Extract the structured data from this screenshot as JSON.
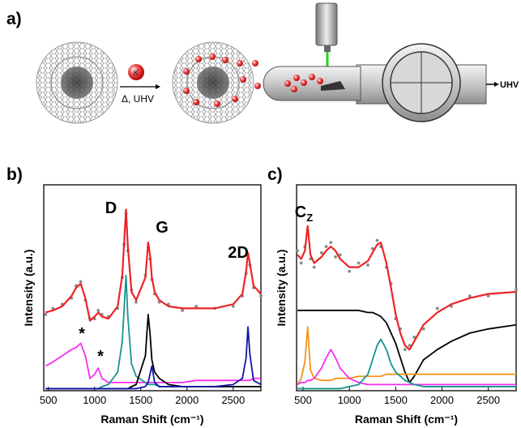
{
  "panel_a": {
    "label": "a)",
    "ion": "K",
    "condition": "Δ, UHV",
    "pump": "UHV"
  },
  "chart_data": [
    {
      "type": "line",
      "label": "b)",
      "x_label": "Raman Shift (cm⁻¹)",
      "y_label": "Intensity (a.u.)",
      "xlim": [
        450,
        2800
      ],
      "ylim": [
        0,
        100
      ],
      "xticks": [
        500,
        1000,
        1500,
        2000,
        2500
      ],
      "annotations": [
        {
          "text": "D"
        },
        {
          "text": "G"
        },
        {
          "text": "2D"
        },
        {
          "text": "*"
        },
        {
          "text": "*"
        }
      ],
      "x": [
        470,
        550,
        650,
        750,
        800,
        850,
        900,
        950,
        1000,
        1040,
        1080,
        1150,
        1250,
        1300,
        1320,
        1340,
        1360,
        1400,
        1450,
        1550,
        1580,
        1600,
        1620,
        1650,
        1700,
        1800,
        1950,
        2100,
        2300,
        2500,
        2600,
        2640,
        2660,
        2680,
        2720,
        2800
      ],
      "series": [
        {
          "color": "#8a8a8a",
          "marker": "dots",
          "values": [
            37,
            40,
            42,
            45,
            51,
            53,
            44,
            35,
            35,
            39,
            37,
            36,
            40,
            55,
            71,
            86,
            68,
            49,
            43,
            56,
            70,
            64,
            54,
            47,
            43,
            42,
            39,
            41,
            40,
            41,
            46,
            57,
            66,
            61,
            50,
            46
          ]
        },
        {
          "color": "#ec2327",
          "marker": "line",
          "values": [
            38,
            39,
            41,
            46,
            50,
            52,
            45,
            34,
            36,
            38,
            36,
            35,
            41,
            56,
            72,
            88,
            70,
            48,
            44,
            55,
            72,
            66,
            55,
            48,
            44,
            41,
            40,
            40,
            40,
            42,
            47,
            58,
            67,
            62,
            51,
            47
          ]
        },
        {
          "color": "#f62cf2",
          "marker": "line",
          "values": [
            12,
            14,
            17,
            20,
            21,
            23,
            17,
            6,
            8,
            11,
            6,
            4,
            4,
            4,
            4,
            4,
            4,
            4,
            4,
            4,
            4,
            4,
            4,
            4,
            4,
            4,
            4,
            5,
            5,
            5,
            5,
            5,
            5,
            5,
            6,
            6
          ]
        },
        {
          "color": "#15948e",
          "marker": "line",
          "values": [
            1,
            1,
            1,
            1,
            1,
            1,
            1,
            1,
            1,
            1,
            2,
            3,
            9,
            24,
            40,
            56,
            36,
            13,
            7,
            4,
            3,
            3,
            3,
            3,
            2,
            2,
            2,
            2,
            2,
            2,
            2,
            2,
            2,
            2,
            2,
            2
          ]
        },
        {
          "color": "#000000",
          "marker": "line",
          "values": [
            1,
            1,
            1,
            1,
            1,
            1,
            1,
            1,
            1,
            1,
            1,
            1,
            1,
            1,
            1,
            1,
            1,
            2,
            3,
            17,
            37,
            28,
            15,
            9,
            6,
            3,
            2,
            2,
            2,
            2,
            2,
            2,
            2,
            2,
            2,
            2
          ]
        },
        {
          "color": "#1414a8",
          "marker": "line",
          "values": [
            1,
            1,
            1,
            1,
            1,
            1,
            1,
            1,
            1,
            1,
            1,
            1,
            1,
            1,
            1,
            1,
            1,
            1,
            1,
            2,
            4,
            8,
            12,
            4,
            2,
            2,
            2,
            2,
            2,
            3,
            6,
            16,
            31,
            18,
            5,
            3
          ]
        }
      ]
    },
    {
      "type": "line",
      "label": "c)",
      "x_label": "Raman Shift (cm⁻¹)",
      "y_label": "Intensity (a.u.)",
      "xlim": [
        430,
        2800
      ],
      "ylim": [
        0,
        100
      ],
      "xticks": [
        500,
        1000,
        1500,
        2000,
        2500
      ],
      "annotations": [
        {
          "text": "C",
          "sub": "Z"
        }
      ],
      "x": [
        440,
        480,
        520,
        550,
        580,
        620,
        700,
        750,
        800,
        850,
        900,
        1000,
        1100,
        1200,
        1250,
        1300,
        1340,
        1400,
        1450,
        1500,
        1550,
        1600,
        1650,
        1700,
        1800,
        1950,
        2100,
        2300,
        2500,
        2800
      ],
      "series": [
        {
          "color": "#8a8a8a",
          "marker": "dots",
          "values": [
            68,
            62,
            70,
            78,
            64,
            60,
            67,
            70,
            72,
            65,
            66,
            58,
            62,
            61,
            69,
            73,
            70,
            60,
            52,
            35,
            30,
            20,
            22,
            26,
            30,
            40,
            41,
            46,
            46,
            49
          ]
        },
        {
          "color": "#ec2327",
          "marker": "line",
          "values": [
            66,
            64,
            68,
            80,
            66,
            62,
            65,
            68,
            70,
            68,
            64,
            60,
            60,
            63,
            67,
            71,
            72,
            62,
            50,
            37,
            28,
            22,
            20,
            24,
            32,
            38,
            42,
            45,
            47,
            48
          ]
        },
        {
          "color": "#000000",
          "marker": "line",
          "values": [
            39,
            39,
            39,
            39,
            39,
            39,
            39,
            39,
            39,
            39,
            39,
            39,
            39,
            38,
            38,
            37,
            36,
            33,
            28,
            23,
            16,
            9,
            4,
            7,
            15,
            20,
            24,
            28,
            30,
            32
          ]
        },
        {
          "color": "#f39419",
          "marker": "line",
          "values": [
            3,
            6,
            14,
            31,
            10,
            6,
            5,
            5,
            5,
            6,
            6,
            6,
            7,
            7,
            7,
            7,
            7,
            8,
            8,
            8,
            8,
            8,
            8,
            8,
            8,
            8,
            8,
            8,
            8,
            8
          ]
        },
        {
          "color": "#f62cf2",
          "marker": "line",
          "values": [
            3,
            4,
            4,
            5,
            5,
            6,
            11,
            16,
            20,
            16,
            11,
            6,
            4,
            3,
            3,
            3,
            3,
            3,
            3,
            3,
            3,
            3,
            3,
            3,
            3,
            3,
            3,
            3,
            3,
            3
          ]
        },
        {
          "color": "#15948e",
          "marker": "line",
          "values": [
            1,
            1,
            1,
            1,
            1,
            1,
            1,
            1,
            1,
            1,
            1,
            2,
            3,
            8,
            15,
            22,
            25,
            20,
            13,
            9,
            7,
            5,
            4,
            3,
            2,
            2,
            2,
            2,
            2,
            2
          ]
        }
      ]
    }
  ]
}
